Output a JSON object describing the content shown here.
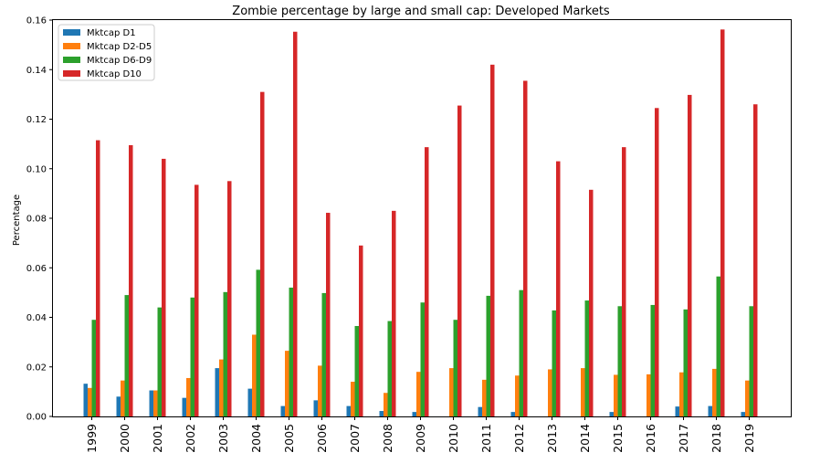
{
  "chart_data": {
    "type": "bar",
    "title": "Zombie percentage by large and small cap: Developed Markets",
    "xlabel": "",
    "ylabel": "Percentage",
    "ylim": [
      0,
      0.16
    ],
    "yticks": [
      0.0,
      0.02,
      0.04,
      0.06,
      0.08,
      0.1,
      0.12,
      0.14,
      0.16
    ],
    "ytick_labels": [
      "0.00",
      "0.02",
      "0.04",
      "0.06",
      "0.08",
      "0.10",
      "0.12",
      "0.14",
      "0.16"
    ],
    "legend_position": "top-left",
    "grid": false,
    "categories": [
      "1999",
      "2000",
      "2001",
      "2002",
      "2003",
      "2004",
      "2005",
      "2006",
      "2007",
      "2008",
      "2009",
      "2010",
      "2011",
      "2012",
      "2013",
      "2014",
      "2015",
      "2016",
      "2017",
      "2018",
      "2019"
    ],
    "series": [
      {
        "name": "Mktcap D1",
        "color": "#1f77b4",
        "values": [
          0.0132,
          0.008,
          0.0105,
          0.0075,
          0.0195,
          0.0112,
          0.0042,
          0.0065,
          0.0042,
          0.0022,
          0.0018,
          0.0,
          0.0038,
          0.0018,
          0.0,
          0.0,
          0.0018,
          0.0,
          0.004,
          0.0042,
          0.0018
        ]
      },
      {
        "name": "Mktcap D2-D5",
        "color": "#ff7f0e",
        "values": [
          0.0115,
          0.0145,
          0.0105,
          0.0155,
          0.023,
          0.033,
          0.0265,
          0.0205,
          0.014,
          0.0095,
          0.018,
          0.0195,
          0.0148,
          0.0165,
          0.019,
          0.0195,
          0.0168,
          0.017,
          0.0178,
          0.0192,
          0.0145
        ]
      },
      {
        "name": "Mktcap D6-D9",
        "color": "#2ca02c",
        "values": [
          0.039,
          0.049,
          0.044,
          0.048,
          0.0502,
          0.0592,
          0.052,
          0.0498,
          0.0365,
          0.0385,
          0.046,
          0.039,
          0.0487,
          0.051,
          0.0428,
          0.0468,
          0.0445,
          0.045,
          0.0432,
          0.0565,
          0.0445
        ]
      },
      {
        "name": "Mktcap D10",
        "color": "#d62728",
        "values": [
          0.1115,
          0.1095,
          0.104,
          0.0935,
          0.095,
          0.131,
          0.1553,
          0.0822,
          0.069,
          0.083,
          0.1087,
          0.1255,
          0.142,
          0.1355,
          0.103,
          0.0915,
          0.1087,
          0.1245,
          0.1298,
          0.1562,
          0.126
        ]
      }
    ]
  }
}
